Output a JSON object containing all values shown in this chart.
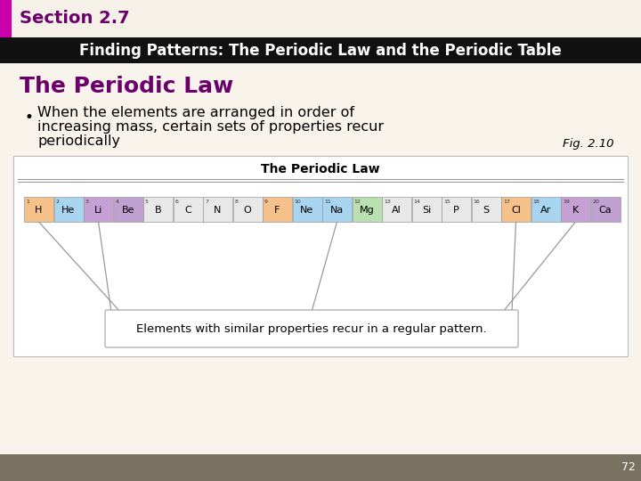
{
  "section_label": "Section 2.7",
  "header_text": "Finding Patterns: The Periodic Law and the Periodic Table",
  "subtitle": "The Periodic Law",
  "bullet_line1": "When the elements are arranged in order of",
  "bullet_line2": "increasing mass, certain sets of properties recur",
  "bullet_line3": "periodically",
  "fig_label": "Fig. 2.10",
  "periodic_law_title": "The Periodic Law",
  "caption": "Elements with similar properties recur in a regular pattern.",
  "elements": [
    "H",
    "He",
    "Li",
    "Be",
    "B",
    "C",
    "N",
    "O",
    "F",
    "Ne",
    "Na",
    "Mg",
    "Al",
    "Si",
    "P",
    "S",
    "Cl",
    "Ar",
    "K",
    "Ca"
  ],
  "numbers": [
    "1",
    "2",
    "3",
    "4",
    "5",
    "6",
    "7",
    "8",
    "9",
    "10",
    "11",
    "12",
    "13",
    "14",
    "15",
    "16",
    "17",
    "18",
    "19",
    "20"
  ],
  "element_colors": [
    "#f5c08a",
    "#a8d4f0",
    "#c4a0d4",
    "#c0a0d0",
    "#e8e8e8",
    "#e8e8e8",
    "#e8e8e8",
    "#e8e8e8",
    "#f5c08a",
    "#a8d4f0",
    "#a8d4f0",
    "#b8e0b0",
    "#e8e8e8",
    "#e8e8e8",
    "#e8e8e8",
    "#e8e8e8",
    "#f5c08a",
    "#a8d4f0",
    "#c4a0d4",
    "#c0a0d0"
  ],
  "section_bar_color": "#cc00aa",
  "subtitle_color": "#6b006b",
  "header_bg": "#111111",
  "header_fg": "#ffffff",
  "top_bg": "#f5f0e8",
  "content_bg": "#f8f4ec",
  "bottom_bar_color": "#7a7260",
  "page_number": "72",
  "line_color": "#999999",
  "caption_border": "#aaaaaa"
}
